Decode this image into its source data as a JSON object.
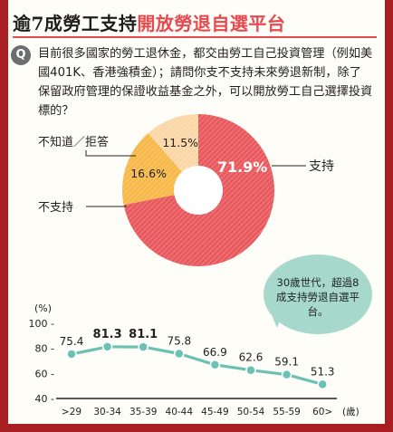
{
  "title": {
    "lead": "逾7成勞工支持",
    "accent": "開放勞退自選平台"
  },
  "question": {
    "badge": "Q",
    "text": "目前很多國家的勞工退休金，都交由勞工自己投資管理（例如美國401K、香港強積金）；請問你支不支持未來勞退新制，除了保留政府管理的保證收益基金之外，可以開放勞工自己選擇投資標的？"
  },
  "chart_data": [
    {
      "type": "pie",
      "title": "",
      "slices": [
        {
          "label": "支持",
          "value": 71.9,
          "value_label": "71.9%",
          "color": "#e95a5f"
        },
        {
          "label": "不支持",
          "value": 16.6,
          "value_label": "16.6%",
          "color": "#f6b94a"
        },
        {
          "label": "不知道／拒答",
          "value": 11.5,
          "value_label": "11.5%",
          "color": "#fbd7a8"
        }
      ],
      "donut": true,
      "legend": "outside labels with leader lines"
    },
    {
      "type": "line",
      "title": "",
      "ylabel": "(%)",
      "xlabel_unit": "(歲)",
      "categories": [
        ">29",
        "30-34",
        "35-39",
        "40-44",
        "45-49",
        "50-54",
        "55-59",
        "60>"
      ],
      "values": [
        75.4,
        81.3,
        81.1,
        75.8,
        66.9,
        62.6,
        59.1,
        51.3
      ],
      "value_labels": [
        "75.4",
        "81.3",
        "81.1",
        "75.8",
        "66.9",
        "62.6",
        "59.1",
        "51.3"
      ],
      "highlight_indices": [
        1,
        2
      ],
      "y_ticks": [
        40,
        60,
        80,
        100
      ],
      "y_tick_labels": [
        "40 -",
        "60 -",
        "80 -",
        "100 -"
      ],
      "ylim": [
        40,
        100
      ],
      "grid": false,
      "line_color": "#6cc2b2",
      "annotation": "30歲世代，超過8成支持勞退自選平台。",
      "annotation_color": "#a6d9cb"
    }
  ]
}
